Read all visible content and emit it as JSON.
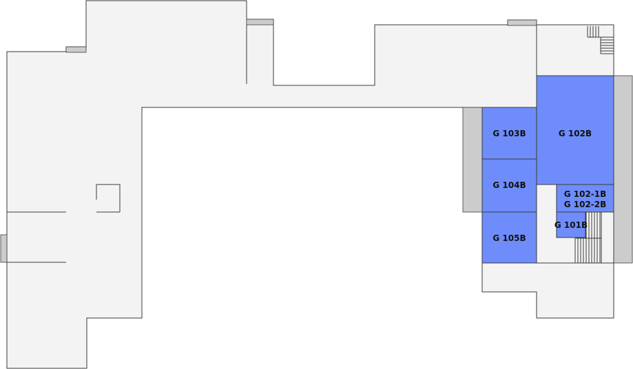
{
  "map": {
    "colors": {
      "floor": "#f4f3f4",
      "wall": "#3a3a3a",
      "gray_block": "#cccccc",
      "room_fill": "#6e8dfa",
      "label": "#111111"
    },
    "rooms": [
      {
        "id": "g103b",
        "label": "G 103B"
      },
      {
        "id": "g102b",
        "label": "G 102B"
      },
      {
        "id": "g104b",
        "label": "G 104B"
      },
      {
        "id": "g102-1b",
        "label": "G 102-1B"
      },
      {
        "id": "g102-2b",
        "label": "G 102-2B"
      },
      {
        "id": "g101b",
        "label": "G 101B"
      },
      {
        "id": "g105b",
        "label": "G 105B"
      }
    ]
  }
}
